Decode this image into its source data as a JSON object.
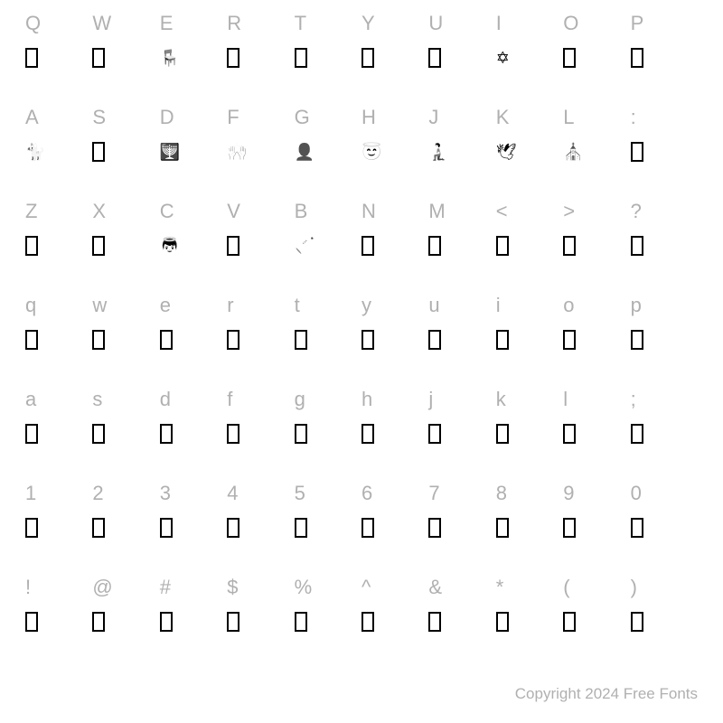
{
  "copyright": "Copyright 2024 Free Fonts",
  "label_color": "#b0b0b0",
  "glyph_color": "#000000",
  "background": "#ffffff",
  "box_style": {
    "width": 14,
    "height": 22,
    "border": 2,
    "color": "#000000"
  },
  "rows": [
    {
      "labels": [
        "Q",
        "W",
        "E",
        "R",
        "T",
        "Y",
        "U",
        "I",
        "O",
        "P"
      ],
      "glyphs": [
        "box",
        "box",
        "pict",
        "box",
        "box",
        "box",
        "box",
        "pict",
        "box",
        "box"
      ],
      "picts": {
        "2": "🪑",
        "7": "✡"
      }
    },
    {
      "labels": [
        "A",
        "S",
        "D",
        "F",
        "G",
        "H",
        "J",
        "K",
        "L",
        ":"
      ],
      "glyphs": [
        "pict",
        "box",
        "pict",
        "pict",
        "pict",
        "pict",
        "pict",
        "pict",
        "pict",
        "box"
      ],
      "picts": {
        "0": "🐈",
        "2": "🕎",
        "3": "🙌",
        "4": "👤",
        "5": "😇",
        "6": "🧎",
        "7": "🕊",
        "8": "⛪"
      }
    },
    {
      "labels": [
        "Z",
        "X",
        "C",
        "V",
        "B",
        "N",
        "M",
        "<",
        ">",
        "?"
      ],
      "glyphs": [
        "box",
        "box",
        "pict",
        "box",
        "pict",
        "box",
        "box",
        "box",
        "box",
        "box"
      ],
      "picts": {
        "2": "👼",
        "4": "🎺"
      }
    },
    {
      "labels": [
        "q",
        "w",
        "e",
        "r",
        "t",
        "y",
        "u",
        "i",
        "o",
        "p"
      ],
      "glyphs": [
        "box",
        "box",
        "box",
        "box",
        "box",
        "box",
        "box",
        "box",
        "box",
        "box"
      ],
      "picts": {}
    },
    {
      "labels": [
        "a",
        "s",
        "d",
        "f",
        "g",
        "h",
        "j",
        "k",
        "l",
        ";"
      ],
      "glyphs": [
        "box",
        "box",
        "box",
        "box",
        "box",
        "box",
        "box",
        "box",
        "box",
        "box"
      ],
      "picts": {}
    },
    {
      "labels": [
        "1",
        "2",
        "3",
        "4",
        "5",
        "6",
        "7",
        "8",
        "9",
        "0"
      ],
      "glyphs": [
        "box",
        "box",
        "box",
        "box",
        "box",
        "box",
        "box",
        "box",
        "box",
        "box"
      ],
      "picts": {}
    },
    {
      "labels": [
        "!",
        "@",
        "#",
        "$",
        "%",
        "^",
        "&",
        "*",
        "(",
        ")"
      ],
      "glyphs": [
        "box",
        "box",
        "box",
        "box",
        "box",
        "box",
        "box",
        "box",
        "box",
        "box"
      ],
      "picts": {}
    }
  ]
}
